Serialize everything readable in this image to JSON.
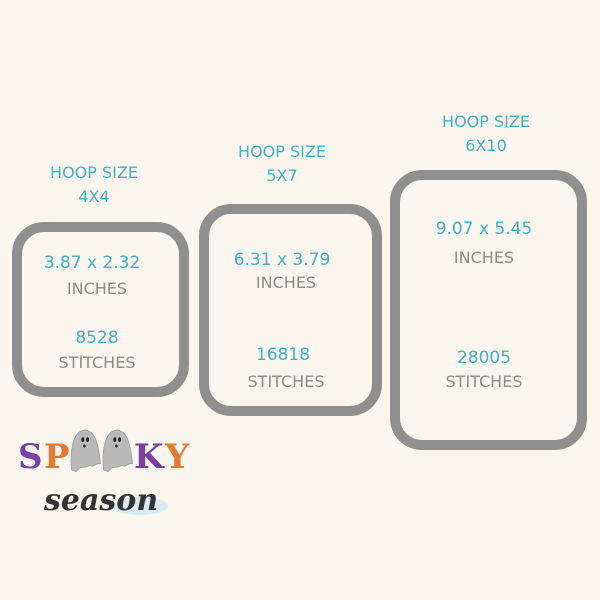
{
  "colors": {
    "background": "#fcf6f1",
    "accent": "#3fb1c9",
    "text_gray": "#8c8c8c",
    "hoop": "#8f8f8f"
  },
  "hoops": [
    {
      "title": "HOOP SIZE",
      "size": "4X4",
      "dimensions": "3.87 x 2.32",
      "dimensions_unit": "INCHES",
      "stitches": "8528",
      "stitches_label": "STITCHES"
    },
    {
      "title": "HOOP SIZE",
      "size": "5X7",
      "dimensions": "6.31 x 3.79",
      "dimensions_unit": "INCHES",
      "stitches": "16818",
      "stitches_label": "STITCHES"
    },
    {
      "title": "HOOP SIZE",
      "size": "6X10",
      "dimensions": "9.07 x 5.45",
      "dimensions_unit": "INCHES",
      "stitches": "28005",
      "stitches_label": "STITCHES"
    }
  ],
  "logo": {
    "line1": "SPOOKY",
    "line2": "season"
  }
}
